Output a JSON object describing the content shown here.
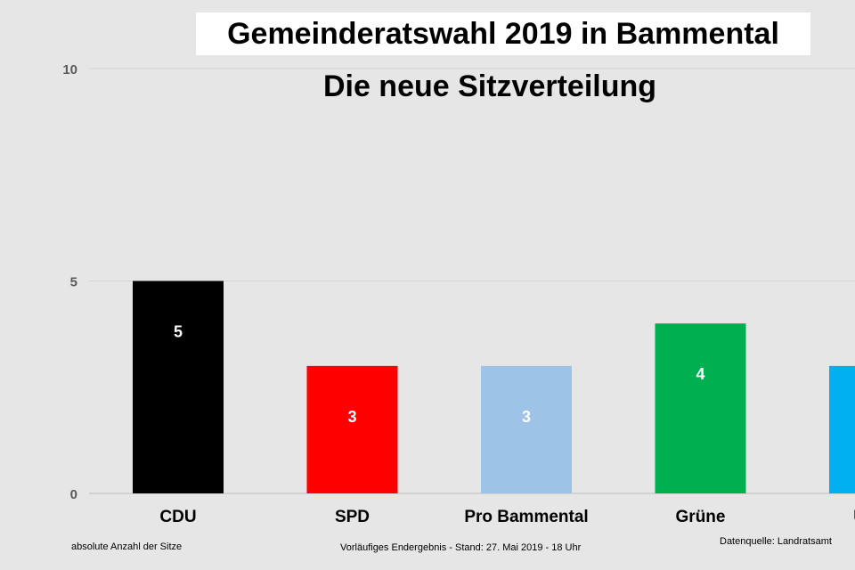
{
  "chart_data": {
    "type": "bar",
    "title": "Gemeinderatswahl 2019 in Bammental",
    "subtitle": "Die neue Sitzverteilung",
    "categories": [
      "CDU",
      "SPD",
      "Pro Bammental",
      "Grüne",
      "Unab"
    ],
    "categories_line2": [
      "",
      "",
      "",
      "",
      "W"
    ],
    "values": [
      5,
      3,
      3,
      4,
      3
    ],
    "data_labels": [
      "5",
      "3",
      "3",
      "4",
      ""
    ],
    "colors": [
      "#000000",
      "#ff0000",
      "#9dc3e6",
      "#00b050",
      "#00b0f0"
    ],
    "ylim": [
      0,
      10
    ],
    "yticks": [
      0,
      5,
      10
    ],
    "grid": true
  },
  "footer": {
    "left": "absolute Anzahl der Sitze",
    "middle": "Vorläufiges Endergebnis - Stand: 27. Mai 2019  - 18 Uhr",
    "right": "Datenquelle: Landratsamt"
  }
}
